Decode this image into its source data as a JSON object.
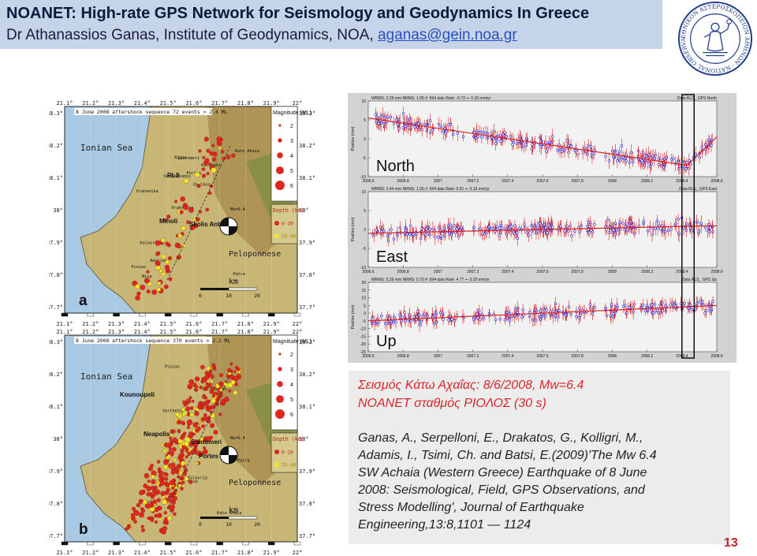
{
  "header": {
    "title": "NOANET: High-rate GPS Network for Seismology and Geodynamics In Greece",
    "subtitle_prefix": "Dr Athanassios Ganas, Institute of Geodynamics, NOA,",
    "email": "aganas@gein.noa.gr"
  },
  "seal": {
    "ring_text": "ΕΘΝΙΚΟΝ ΑΣΤΕΡΟΣΚΟΠΕΙΟΝ ΑΘΗΝΩΝ · NATIONAL OBSERVATORY ·"
  },
  "maps": [
    {
      "caption": "8 June 2008 aftershock sequence 72 events > 2.4 ML",
      "panel_letter": "a",
      "top_ticks": [
        "21.1°",
        "21.2°",
        "21.3°",
        "21.4°",
        "21.5°",
        "21.6°",
        "21.7°",
        "21.8°",
        "21.9°",
        "22°"
      ],
      "left_ticks": [
        "38.3°",
        "38.2°",
        "38.1°",
        "38°",
        "37.9°",
        "37.8°",
        "37.7°"
      ],
      "sea_label": "Ionian Sea",
      "land_label": "Peloponnese",
      "bold_labels": [
        "RLS",
        "Miholi",
        "Skolis Anticline"
      ],
      "small_labels": [
        "Patra",
        "Vrahneika",
        "Kato Ahaia",
        "Vrahneika",
        "Kalamaki",
        "Nisa",
        "Riolo",
        "Portes",
        "Kalavria",
        "Varthelomio",
        "Pinias",
        "Amalias",
        "Santomeri",
        "Ozeikos"
      ],
      "legend_title": "Magnitude (ML)",
      "legend_mags": [
        "2",
        "3",
        "4",
        "5",
        "6"
      ],
      "depth_title": "Depth (km)",
      "depth_ranges": [
        "0-20",
        "20-40"
      ],
      "scale_unit": "km",
      "scale_ticks": [
        "0",
        "10",
        "20"
      ],
      "mech_label": "Mw=6.4"
    },
    {
      "caption": "8 June 2008 aftershock sequence 370 events > 2.1 ML",
      "panel_letter": "b",
      "top_ticks": [
        "21.1°",
        "21.2°",
        "21.3°",
        "21.4°",
        "21.5°",
        "21.6°",
        "21.7°",
        "21.8°",
        "21.9°",
        "22°"
      ],
      "left_ticks": [
        "38.3°",
        "38.2°",
        "38.1°",
        "38°",
        "37.9°",
        "37.8°",
        "37.7°"
      ],
      "sea_label": "Ionian Sea",
      "land_label": "Peloponnese",
      "bold_labels": [
        "Kounoupeli",
        "Neapolis",
        "Santomeri",
        "Portes"
      ],
      "small_labels": [
        "Patra",
        "Kato Ahaia",
        "Nisa",
        "Riolo",
        "Kalavria",
        "Varthelomio",
        "Pinias",
        "Amalias"
      ],
      "legend_title": "Magnitude (ML)",
      "legend_mags": [
        "2",
        "3",
        "4",
        "5",
        "6"
      ],
      "depth_title": "Depth (km)",
      "depth_ranges": [
        "0-20",
        "20-40"
      ],
      "scale_unit": "km",
      "scale_ticks": [
        "0",
        "10",
        "20"
      ],
      "mech_label": "Mw=6.4"
    }
  ],
  "chart_data": [
    {
      "type": "scatter",
      "panel_label": "North",
      "stats": "WRMS: 2.28 mm NRMS: 1.05 #: 694 dats Rate: -6.73 +- 0.15 mm/yr",
      "series_label": "Data RLS_ GPS North",
      "ylabel": "Position (mm)",
      "ylim": [
        -10,
        10
      ],
      "yticks": [
        "10",
        "5",
        "0",
        "-5",
        "-10"
      ],
      "xticks": [
        "2006.6",
        "2006.8",
        "2007",
        "2007.2",
        "2007.4",
        "2007.6",
        "2007.8",
        "2008",
        "2008.2",
        "2008.4",
        "2008.6"
      ],
      "xlim": [
        2006.6,
        2008.6
      ],
      "trend": {
        "x": [
          2006.6,
          2008.43,
          2008.6
        ],
        "y": [
          5.5,
          -7.0,
          0.5
        ]
      },
      "colors": {
        "points": "#1a1ad0",
        "errors": "#e02020",
        "fit": "#e02020"
      }
    },
    {
      "type": "scatter",
      "panel_label": "East",
      "stats": "WRMS: 2.44 mm NRMS: 1.00 #: 694 dats Rate: 0.91 +- 0.16 mm/yr",
      "series_label": "Data RLS_ GPS East",
      "ylabel": "Position (mm)",
      "ylim": [
        -10,
        10
      ],
      "yticks": [
        "10",
        "5",
        "0",
        "-5",
        "-10"
      ],
      "xticks": [
        "2006.6",
        "2006.8",
        "2007",
        "2007.2",
        "2007.4",
        "2007.6",
        "2007.8",
        "2008",
        "2008.2",
        "2008.4",
        "2008.6"
      ],
      "xlim": [
        2006.6,
        2008.6
      ],
      "trend": {
        "x": [
          2006.6,
          2008.6
        ],
        "y": [
          -1,
          1
        ]
      },
      "colors": {
        "points": "#1a1ad0",
        "errors": "#e02020",
        "fit": "#e02020"
      }
    },
    {
      "type": "scatter",
      "panel_label": "Up",
      "stats": "WRMS: 5.29 mm NRMS: 0.70 #: 694 dats Rate: 4.77 +- 0.35 mm/yr",
      "series_label": "Data RLS_ GPS Up",
      "ylabel": "Position (mm)",
      "ylim": [
        -25,
        20
      ],
      "yticks": [
        "20",
        "15",
        "10",
        "5",
        "0",
        "-5",
        "-10",
        "-15",
        "-20",
        "-25"
      ],
      "xticks": [
        "2006.6",
        "2006.8",
        "2007",
        "2007.2",
        "2007.4",
        "2007.6",
        "2007.8",
        "2008",
        "2008.2",
        "2008.4",
        "2008.6"
      ],
      "xlim": [
        2006.6,
        2008.6
      ],
      "trend": {
        "x": [
          2006.6,
          2008.6
        ],
        "y": [
          -5,
          5
        ]
      },
      "colors": {
        "points": "#1a1ad0",
        "errors": "#e02020",
        "fit": "#e02020"
      }
    }
  ],
  "event": {
    "line1": "Σεισμός Κάτω Αχαΐας: 8/6/2008, Mw=6.4",
    "line2": "NOANET σταθμός ΡΙΟΛΟΣ (30 s)"
  },
  "citation": {
    "lines": [
      "Ganas, A., Serpelloni, E., Drakatos, G., Kolligri, M.,",
      "Adamis, I., Tsimi, Ch. and Batsi, E.(2009)'The Mw 6.4",
      "SW Achaia (Western Greece) Earthquake of 8 June",
      "2008: Seismological, Field, GPS Observations, and",
      "Stress Modelling', Journal of Earthquake",
      "Engineering,13:8,1101 — 1124"
    ]
  },
  "page_number": "13"
}
